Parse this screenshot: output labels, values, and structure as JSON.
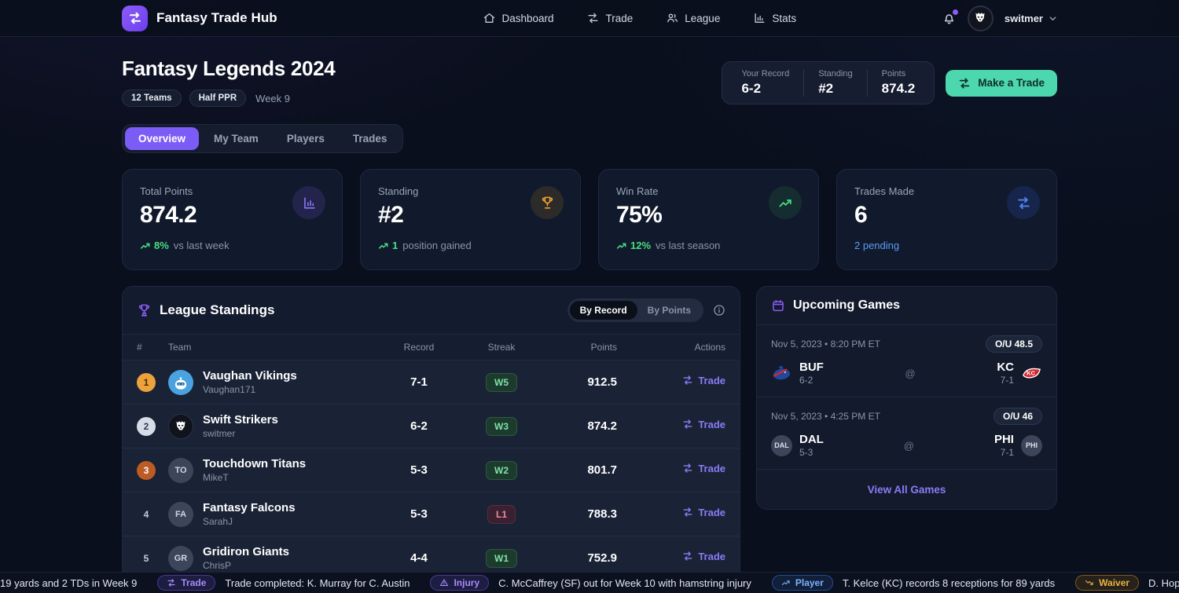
{
  "nav": {
    "brand": "Fantasy Trade Hub",
    "items": [
      {
        "label": "Dashboard",
        "icon": "home-icon"
      },
      {
        "label": "Trade",
        "icon": "swap-icon"
      },
      {
        "label": "League",
        "icon": "people-icon"
      },
      {
        "label": "Stats",
        "icon": "chart-icon"
      }
    ],
    "user": "switmer",
    "notification_dot_color": "#8b5cf6"
  },
  "header": {
    "title": "Fantasy Legends 2024",
    "badges": [
      "12 Teams",
      "Half PPR"
    ],
    "week": "Week 9",
    "summary": [
      {
        "label": "Your Record",
        "value": "6-2"
      },
      {
        "label": "Standing",
        "value": "#2"
      },
      {
        "label": "Points",
        "value": "874.2"
      }
    ],
    "cta": "Make a Trade",
    "cta_color": "#4cd7ae"
  },
  "tabs": [
    {
      "label": "Overview",
      "active": true
    },
    {
      "label": "My Team",
      "active": false
    },
    {
      "label": "Players",
      "active": false
    },
    {
      "label": "Trades",
      "active": false
    }
  ],
  "stats": [
    {
      "label": "Total Points",
      "value": "874.2",
      "delta": "8%",
      "suffix": "vs last week",
      "icon": "bars",
      "accent": "ic-purple"
    },
    {
      "label": "Standing",
      "value": "#2",
      "delta": "1",
      "suffix": "position gained",
      "icon": "trophy",
      "accent": "ic-amber"
    },
    {
      "label": "Win Rate",
      "value": "75%",
      "delta": "12%",
      "suffix": "vs last season",
      "icon": "trendup",
      "accent": "ic-green"
    },
    {
      "label": "Trades Made",
      "value": "6",
      "note": "2 pending",
      "icon": "swap",
      "accent": "ic-blue"
    }
  ],
  "standings": {
    "title": "League Standings",
    "toggle": [
      "By Record",
      "By Points"
    ],
    "toggle_active": "By Record",
    "columns": [
      "#",
      "Team",
      "Record",
      "Streak",
      "Points",
      "Actions"
    ],
    "action_label": "Trade",
    "rows": [
      {
        "rank": "1",
        "medal": "gold",
        "team": "Vaughan Vikings",
        "owner": "Vaughan171",
        "record": "7-1",
        "streak": "W5",
        "points": "912.5",
        "avatar": "robot"
      },
      {
        "rank": "2",
        "medal": "silver",
        "team": "Swift Strikers",
        "owner": "switmer",
        "record": "6-2",
        "streak": "W3",
        "points": "874.2",
        "avatar": "mascot"
      },
      {
        "rank": "3",
        "medal": "bronze",
        "team": "Touchdown Titans",
        "owner": "MikeT",
        "record": "5-3",
        "streak": "W2",
        "points": "801.7",
        "initials": "TO"
      },
      {
        "rank": "4",
        "medal": null,
        "team": "Fantasy Falcons",
        "owner": "SarahJ",
        "record": "5-3",
        "streak": "L1",
        "points": "788.3",
        "initials": "FA"
      },
      {
        "rank": "5",
        "medal": null,
        "team": "Gridiron Giants",
        "owner": "ChrisP",
        "record": "4-4",
        "streak": "W1",
        "points": "752.9",
        "initials": "GR"
      }
    ]
  },
  "games": {
    "title": "Upcoming Games",
    "items": [
      {
        "datetime": "Nov 5, 2023 • 8:20 PM ET",
        "ou": "O/U 48.5",
        "at": "@",
        "away": {
          "abbr": "BUF",
          "record": "6-2",
          "logo": "bills"
        },
        "home": {
          "abbr": "KC",
          "record": "7-1",
          "logo": "chiefs"
        }
      },
      {
        "datetime": "Nov 5, 2023 • 4:25 PM ET",
        "ou": "O/U 46",
        "at": "@",
        "away": {
          "abbr": "DAL",
          "record": "5-3",
          "logo": null
        },
        "home": {
          "abbr": "PHI",
          "record": "7-1",
          "logo": null
        }
      }
    ],
    "footer_link": "View All Games"
  },
  "ticker": {
    "items": [
      {
        "tag": null,
        "text": "19 yards and 2 TDs in Week 9"
      },
      {
        "tag": "Trade",
        "tag_icon": "swap",
        "tag_color": "tag-purple",
        "text": "Trade completed: K. Murray for C. Austin"
      },
      {
        "tag": "Injury",
        "tag_icon": "warning",
        "tag_color": "tag-purple",
        "text": "C. McCaffrey (SF) out for Week 10 with hamstring injury"
      },
      {
        "tag": "Player",
        "tag_icon": "trendup",
        "tag_color": "tag-blue",
        "text": "T. Kelce (KC) records 8 receptions for 89 yards"
      },
      {
        "tag": "Waiver",
        "tag_icon": "trenddown",
        "tag_color": "tag-gold",
        "text": "D. Hopkins claimed off waivers"
      }
    ]
  },
  "colors": {
    "accent_purple": "#8b5cf6",
    "accent_teal": "#4cd7ae",
    "positive_green": "#4ade80",
    "link_purple": "#8b7bf7",
    "pending_blue": "#5a9cf5"
  }
}
